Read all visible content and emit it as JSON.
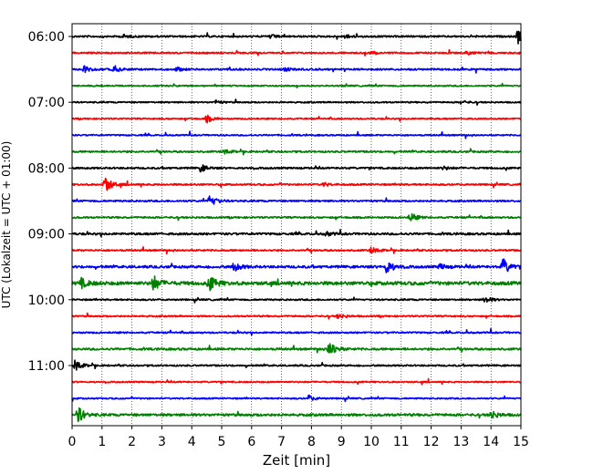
{
  "chart_data": {
    "type": "line",
    "title": "",
    "xlabel": "Zeit  [min]",
    "ylabel": "UTC (Lokalzeit = UTC + 01:00)",
    "xlim": [
      0,
      15
    ],
    "x_ticks": [
      0,
      1,
      2,
      3,
      4,
      5,
      6,
      7,
      8,
      9,
      10,
      11,
      12,
      13,
      14,
      15
    ],
    "x_tick_labels": [
      "0",
      "1",
      "2",
      "3",
      "4",
      "5",
      "6",
      "7",
      "8",
      "9",
      "10",
      "11",
      "12",
      "13",
      "14",
      "15"
    ],
    "y_tick_labels": [
      "06:00",
      "07:00",
      "08:00",
      "09:00",
      "10:00",
      "11:00"
    ],
    "y_tick_rows": [
      0,
      4,
      8,
      12,
      16,
      20
    ],
    "row_minutes": 15,
    "grid": {
      "x": true,
      "y": false
    },
    "color_cycle": [
      "#000000",
      "#ff0000",
      "#0000ff",
      "#008000"
    ],
    "series": [
      {
        "start": "06:00",
        "color": "#000000",
        "noise": 1.0,
        "events": [
          {
            "t": 1.7,
            "a": 2
          },
          {
            "t": 6.6,
            "a": 2
          },
          {
            "t": 9.1,
            "a": 2
          },
          {
            "t": 14.9,
            "a": 8
          }
        ]
      },
      {
        "start": "06:15",
        "color": "#ff0000",
        "noise": 0.9,
        "events": [
          {
            "t": 10.0,
            "a": 2
          },
          {
            "t": 13.2,
            "a": 2
          }
        ]
      },
      {
        "start": "06:30",
        "color": "#0000ff",
        "noise": 1.0,
        "events": [
          {
            "t": 0.4,
            "a": 4
          },
          {
            "t": 1.4,
            "a": 3
          },
          {
            "t": 3.5,
            "a": 2
          },
          {
            "t": 7.1,
            "a": 2
          }
        ]
      },
      {
        "start": "06:45",
        "color": "#008000",
        "noise": 0.8,
        "events": []
      },
      {
        "start": "07:00",
        "color": "#000000",
        "noise": 0.8,
        "events": [
          {
            "t": 4.8,
            "a": 2
          },
          {
            "t": 13.0,
            "a": 2
          }
        ]
      },
      {
        "start": "07:15",
        "color": "#ff0000",
        "noise": 0.8,
        "events": [
          {
            "t": 4.5,
            "a": 4
          }
        ]
      },
      {
        "start": "07:30",
        "color": "#0000ff",
        "noise": 0.8,
        "events": []
      },
      {
        "start": "07:45",
        "color": "#008000",
        "noise": 1.0,
        "events": [
          {
            "t": 5.1,
            "a": 2
          }
        ]
      },
      {
        "start": "08:00",
        "color": "#000000",
        "noise": 1.0,
        "events": [
          {
            "t": 4.3,
            "a": 4
          },
          {
            "t": 12.4,
            "a": 2
          }
        ]
      },
      {
        "start": "08:15",
        "color": "#ff0000",
        "noise": 1.0,
        "events": [
          {
            "t": 1.1,
            "a": 10
          },
          {
            "t": 8.4,
            "a": 2
          }
        ]
      },
      {
        "start": "08:30",
        "color": "#0000ff",
        "noise": 1.0,
        "events": [
          {
            "t": 4.6,
            "a": 7
          }
        ]
      },
      {
        "start": "08:45",
        "color": "#008000",
        "noise": 1.0,
        "events": [
          {
            "t": 11.3,
            "a": 5
          }
        ]
      },
      {
        "start": "09:00",
        "color": "#000000",
        "noise": 1.2,
        "events": [
          {
            "t": 8.5,
            "a": 2
          }
        ]
      },
      {
        "start": "09:15",
        "color": "#ff0000",
        "noise": 1.0,
        "events": [
          {
            "t": 10.0,
            "a": 3
          }
        ]
      },
      {
        "start": "09:30",
        "color": "#0000ff",
        "noise": 1.4,
        "events": [
          {
            "t": 5.4,
            "a": 5
          },
          {
            "t": 10.5,
            "a": 8
          },
          {
            "t": 12.3,
            "a": 3
          },
          {
            "t": 14.4,
            "a": 9
          }
        ]
      },
      {
        "start": "09:45",
        "color": "#008000",
        "noise": 2.0,
        "events": [
          {
            "t": 0.3,
            "a": 5
          },
          {
            "t": 2.7,
            "a": 9
          },
          {
            "t": 4.6,
            "a": 8
          }
        ]
      },
      {
        "start": "10:00",
        "color": "#000000",
        "noise": 0.9,
        "events": [
          {
            "t": 13.8,
            "a": 4
          }
        ]
      },
      {
        "start": "10:15",
        "color": "#ff0000",
        "noise": 0.9,
        "events": [
          {
            "t": 8.9,
            "a": 3
          }
        ]
      },
      {
        "start": "10:30",
        "color": "#0000ff",
        "noise": 0.9,
        "events": []
      },
      {
        "start": "10:45",
        "color": "#008000",
        "noise": 1.2,
        "events": [
          {
            "t": 8.6,
            "a": 10
          }
        ]
      },
      {
        "start": "11:00",
        "color": "#000000",
        "noise": 0.9,
        "events": [
          {
            "t": 0.1,
            "a": 6
          }
        ]
      },
      {
        "start": "11:15",
        "color": "#ff0000",
        "noise": 0.8,
        "events": []
      },
      {
        "start": "11:30",
        "color": "#0000ff",
        "noise": 0.8,
        "events": [
          {
            "t": 7.9,
            "a": 3
          }
        ]
      },
      {
        "start": "11:45",
        "color": "#008000",
        "noise": 1.4,
        "events": [
          {
            "t": 0.2,
            "a": 9
          },
          {
            "t": 14.0,
            "a": 5
          }
        ]
      }
    ]
  }
}
